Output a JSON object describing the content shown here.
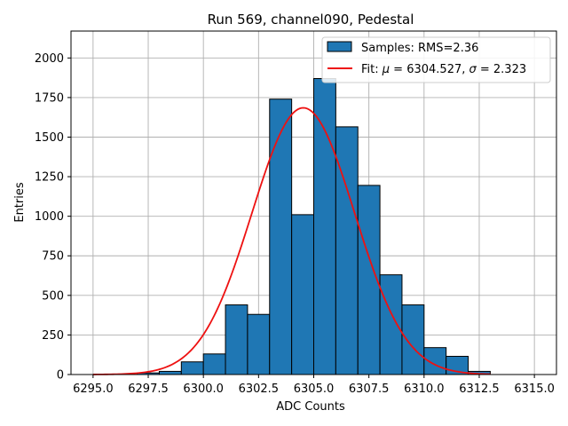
{
  "chart_data": {
    "type": "bar",
    "title": "Run 569, channel090, Pedestal",
    "xlabel": "ADC Counts",
    "ylabel": "Entries",
    "xlim": [
      6294.0,
      6316.0
    ],
    "ylim": [
      0,
      2170
    ],
    "xticks": [
      6295.0,
      6297.5,
      6300.0,
      6302.5,
      6305.0,
      6307.5,
      6310.0,
      6312.5,
      6315.0
    ],
    "xtick_labels": [
      "6295.0",
      "6297.5",
      "6300.0",
      "6302.5",
      "6305.0",
      "6307.5",
      "6310.0",
      "6312.5",
      "6315.0"
    ],
    "yticks": [
      0,
      250,
      500,
      750,
      1000,
      1250,
      1500,
      1750,
      2000
    ],
    "ytick_labels": [
      "0",
      "250",
      "500",
      "750",
      "1000",
      "1250",
      "1500",
      "1750",
      "2000"
    ],
    "grid": true,
    "legend_position": "top-right",
    "bar_color": "#1f77b4",
    "fit_color": "#ee1111",
    "bins": [
      {
        "left": 6297.0,
        "right": 6298.0,
        "value": 10
      },
      {
        "left": 6298.0,
        "right": 6299.0,
        "value": 20
      },
      {
        "left": 6299.0,
        "right": 6300.0,
        "value": 80
      },
      {
        "left": 6300.0,
        "right": 6301.0,
        "value": 130
      },
      {
        "left": 6301.0,
        "right": 6302.0,
        "value": 440
      },
      {
        "left": 6302.0,
        "right": 6303.0,
        "value": 380
      },
      {
        "left": 6303.0,
        "right": 6304.0,
        "value": 1740
      },
      {
        "left": 6304.0,
        "right": 6305.0,
        "value": 1010
      },
      {
        "left": 6305.0,
        "right": 6306.0,
        "value": 1870
      },
      {
        "left": 6306.0,
        "right": 6307.0,
        "value": 1565
      },
      {
        "left": 6307.0,
        "right": 6308.0,
        "value": 1195
      },
      {
        "left": 6308.0,
        "right": 6309.0,
        "value": 630
      },
      {
        "left": 6309.0,
        "right": 6310.0,
        "value": 440
      },
      {
        "left": 6310.0,
        "right": 6311.0,
        "value": 170
      },
      {
        "left": 6311.0,
        "right": 6312.0,
        "value": 115
      },
      {
        "left": 6312.0,
        "right": 6313.0,
        "value": 20
      }
    ],
    "fit": {
      "mu": 6304.527,
      "sigma": 2.323,
      "amplitude": 1685,
      "range": [
        6295.0,
        6313.0
      ]
    },
    "legend": [
      {
        "label": "Samples: RMS=2.36",
        "kind": "bar"
      },
      {
        "label_prefix": "Fit: ",
        "mu_symbol": "μ",
        "mu_text": " = 6304.527, ",
        "sigma_symbol": "σ",
        "sigma_text": " = 2.323",
        "kind": "line"
      }
    ]
  }
}
